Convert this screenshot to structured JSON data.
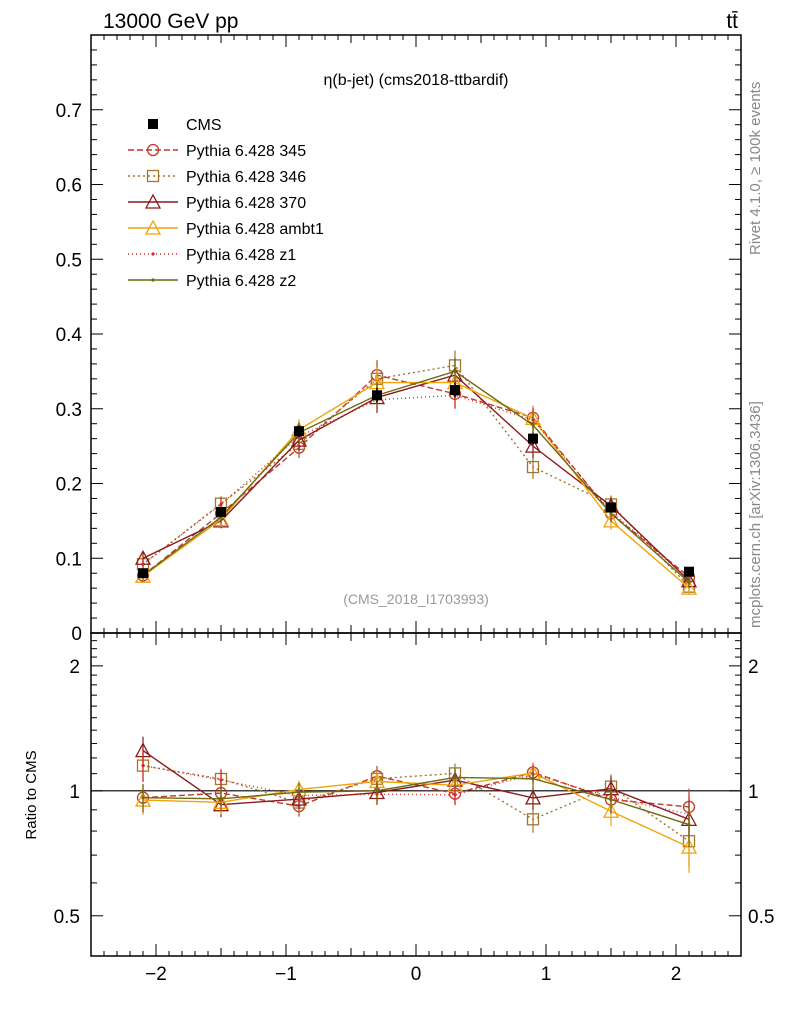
{
  "header": {
    "left": "13000 GeV pp",
    "right": "tt̄"
  },
  "side_labels": {
    "rivet": "Rivet 4.1.0, ≥ 100k events",
    "mcplots": "mcplots.cern.ch [arXiv:1306.3436]"
  },
  "chart_data": {
    "type": "line",
    "title": "η(b-jet) (cms2018-ttbardif)",
    "watermark": "(CMS_2018_I1703993)",
    "xlabel": "",
    "ylabel": "",
    "ratio_ylabel": "Ratio to CMS",
    "xlim": [
      -2.5,
      2.5
    ],
    "ylim": [
      0,
      0.8
    ],
    "ratio_ylim": [
      0.4,
      2.4
    ],
    "x": [
      -2.1,
      -1.5,
      -0.9,
      -0.3,
      0.3,
      0.9,
      1.5,
      2.1
    ],
    "x_ticks": [
      -2,
      -1,
      0,
      1,
      2
    ],
    "x_tick_labels": [
      "−2",
      "−1",
      "0",
      "1",
      "2"
    ],
    "y_ticks": [
      0,
      0.1,
      0.2,
      0.3,
      0.4,
      0.5,
      0.6,
      0.7
    ],
    "y_tick_labels": [
      "0",
      "0.1",
      "0.2",
      "0.3",
      "0.4",
      "0.5",
      "0.6",
      "0.7"
    ],
    "ratio_ticks": [
      0.5,
      1,
      2
    ],
    "ratio_tick_labels": [
      "0.5",
      "1",
      "2"
    ],
    "data": {
      "name": "CMS",
      "values": [
        0.08,
        0.162,
        0.27,
        0.318,
        0.325,
        0.26,
        0.168,
        0.082
      ],
      "errors": [
        0.004,
        0.006,
        0.008,
        0.01,
        0.01,
        0.008,
        0.006,
        0.004
      ]
    },
    "series": [
      {
        "name": "Pythia 6.428 345",
        "color": "#c0392b",
        "dash": "6,3",
        "marker": "circle",
        "values": [
          0.077,
          0.16,
          0.248,
          0.345,
          0.32,
          0.288,
          0.16,
          0.075
        ],
        "errors": [
          0.006,
          0.01,
          0.014,
          0.02,
          0.018,
          0.016,
          0.012,
          0.008
        ]
      },
      {
        "name": "Pythia 6.428 346",
        "color": "#a0772b",
        "dash": "2,3",
        "marker": "square",
        "values": [
          0.092,
          0.173,
          0.253,
          0.34,
          0.358,
          0.222,
          0.172,
          0.062
        ],
        "errors": [
          0.008,
          0.01,
          0.014,
          0.02,
          0.02,
          0.016,
          0.012,
          0.008
        ]
      },
      {
        "name": "Pythia 6.428 370",
        "color": "#8b1a1a",
        "dash": "",
        "marker": "triangle",
        "values": [
          0.1,
          0.15,
          0.258,
          0.315,
          0.345,
          0.25,
          0.17,
          0.07
        ],
        "errors": [
          0.008,
          0.01,
          0.014,
          0.02,
          0.02,
          0.016,
          0.012,
          0.008
        ]
      },
      {
        "name": "Pythia 6.428 ambt1",
        "color": "#f0a30a",
        "dash": "",
        "marker": "triangle",
        "values": [
          0.076,
          0.152,
          0.272,
          0.335,
          0.335,
          0.287,
          0.15,
          0.06
        ],
        "errors": [
          0.006,
          0.01,
          0.014,
          0.02,
          0.018,
          0.016,
          0.012,
          0.008
        ]
      },
      {
        "name": "Pythia 6.428 z1",
        "color": "#d62728",
        "dash": "1,3",
        "marker": "dot",
        "values": [
          0.092,
          0.172,
          0.263,
          0.312,
          0.318,
          0.285,
          0.162,
          0.072
        ],
        "errors": [
          0.008,
          0.01,
          0.014,
          0.018,
          0.018,
          0.016,
          0.012,
          0.008
        ]
      },
      {
        "name": "Pythia 6.428 z2",
        "color": "#6b6b10",
        "dash": "",
        "marker": "dot",
        "values": [
          0.077,
          0.155,
          0.268,
          0.318,
          0.35,
          0.278,
          0.16,
          0.068
        ],
        "errors": [
          0.006,
          0.01,
          0.014,
          0.018,
          0.018,
          0.016,
          0.012,
          0.008
        ]
      }
    ]
  }
}
